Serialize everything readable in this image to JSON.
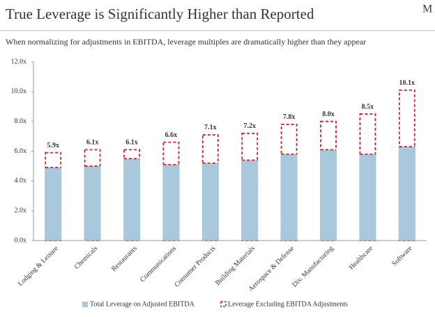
{
  "chart_data": {
    "type": "bar",
    "title": "True Leverage is Significantly Higher than Reported",
    "subtitle": "When normalizing for adjustments in EBITDA, leverage multiples are dramatically higher than they appear",
    "corner_mark": "M",
    "categories": [
      "Lodging & Leisure",
      "Chemicals",
      "Restaurants",
      "Communications",
      "Consumer Products",
      "Building Materials",
      "Aerospace & Defense",
      "Div. Manufacturing",
      "Healthcare",
      "Software"
    ],
    "series": [
      {
        "name": "Total Leverage on Adjusted EBITDA",
        "color": "#a9c8dc",
        "values": [
          4.9,
          5.0,
          5.5,
          5.1,
          5.2,
          5.4,
          5.8,
          6.1,
          5.8,
          6.3
        ]
      },
      {
        "name": "Leverage Excluding EBITDA Adjustments",
        "color": "#d0202a",
        "style": "dashed",
        "values": [
          5.9,
          6.1,
          6.1,
          6.6,
          7.1,
          7.2,
          7.8,
          8.0,
          8.5,
          10.1
        ],
        "value_labels": [
          "5.9x",
          "6.1x",
          "6.1x",
          "6.6x",
          "7.1x",
          "7.2x",
          "7.8x",
          "8.0x",
          "8.5x",
          "10.1x"
        ]
      }
    ],
    "ylim": [
      0,
      12
    ],
    "yticks": [
      {
        "value": 0,
        "label": "0.0x"
      },
      {
        "value": 2,
        "label": "2.0x"
      },
      {
        "value": 4,
        "label": "4.0x"
      },
      {
        "value": 6,
        "label": "6.0x"
      },
      {
        "value": 8,
        "label": "8.0x"
      },
      {
        "value": 10,
        "label": "10.0x"
      },
      {
        "value": 12,
        "label": "12.0x"
      }
    ],
    "grid": false,
    "legend": "bottom"
  }
}
